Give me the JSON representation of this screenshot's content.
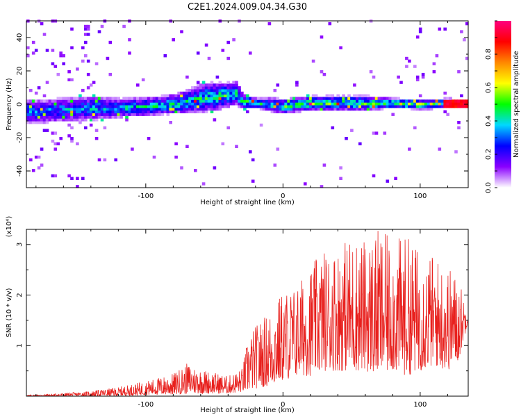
{
  "chart_data": [
    {
      "type": "heatmap",
      "title": "C2E1.2024.009.04.34.G30",
      "xlabel": "Height of straight line (km)",
      "ylabel": "Frequency (Hz)",
      "xlim": [
        -187,
        135
      ],
      "ylim": [
        -50,
        50
      ],
      "x_ticks": [
        "-100",
        "0",
        "100"
      ],
      "y_ticks": [
        "-40",
        "-20",
        "0",
        "20",
        "40"
      ],
      "colorbar": {
        "label": "Normalized spectral amplitude",
        "range": [
          0,
          1
        ],
        "ticks": [
          "0.0",
          "0.2",
          "0.4",
          "0.6",
          "0.8"
        ],
        "colors": [
          "#ffffff",
          "#8a00ff",
          "#0000ff",
          "#00d8ff",
          "#00ff00",
          "#ffff00",
          "#ff8800",
          "#ff0000",
          "#ff0080"
        ]
      },
      "ridge": {
        "x": [
          -175,
          -160,
          -140,
          -120,
          -100,
          -85,
          -70,
          -60,
          -50,
          -40,
          -35,
          -30,
          -20,
          -10,
          0,
          10,
          20,
          40,
          60,
          80,
          100,
          120,
          133
        ],
        "center_freq": [
          -5,
          -4,
          -3,
          -3,
          -2,
          -1,
          1,
          3,
          4,
          5,
          6,
          1,
          0,
          -1,
          -2,
          -1,
          0,
          0,
          0,
          0,
          -1,
          0,
          0
        ],
        "half_width": [
          5,
          5,
          5,
          4,
          4,
          4,
          5,
          6,
          6,
          5,
          5,
          3,
          2,
          3,
          3,
          3,
          3,
          3,
          3,
          2,
          2,
          2,
          1
        ]
      }
    },
    {
      "type": "line",
      "title": "",
      "xlabel": "Height of straight line (km)",
      "ylabel": "SNR (10 * v/v)",
      "y_multiplier": "(x10⁴)",
      "xlim": [
        -187,
        135
      ],
      "ylim": [
        0,
        3.3
      ],
      "x_ticks": [
        "-100",
        "0",
        "100"
      ],
      "y_ticks": [
        "1",
        "2",
        "3"
      ],
      "series": [
        {
          "color": "#e8201d",
          "envelope_x": [
            -187,
            -160,
            -140,
            -120,
            -100,
            -80,
            -70,
            -60,
            -40,
            -30,
            -25,
            -20,
            -10,
            0,
            10,
            20,
            30,
            40,
            50,
            60,
            70,
            80,
            90,
            100,
            110,
            120,
            128,
            135
          ],
          "envelope_max": [
            0.02,
            0.06,
            0.1,
            0.18,
            0.3,
            0.45,
            0.65,
            0.55,
            0.4,
            0.55,
            1.2,
            1.4,
            1.7,
            2.1,
            2.2,
            2.6,
            2.9,
            3.0,
            3.2,
            3.1,
            3.3,
            3.1,
            3.2,
            2.9,
            2.8,
            2.6,
            2.4,
            1.6
          ],
          "envelope_min": [
            0.0,
            0.0,
            0.0,
            0.0,
            0.02,
            0.03,
            0.05,
            0.05,
            0.05,
            0.08,
            0.1,
            0.15,
            0.2,
            0.3,
            0.4,
            0.4,
            0.5,
            0.5,
            0.5,
            0.5,
            0.4,
            0.5,
            0.4,
            0.5,
            0.6,
            0.5,
            0.7,
            1.5
          ]
        }
      ]
    }
  ]
}
